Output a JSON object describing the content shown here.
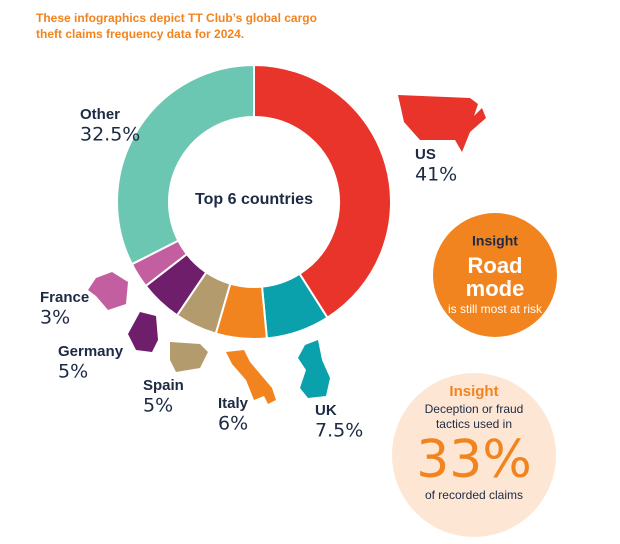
{
  "header": {
    "text": "These infographics depict TT Club’s global cargo theft claims frequency data for 2024."
  },
  "chart_data": {
    "type": "donut",
    "center_label": "Top 6 countries",
    "categories": [
      "US",
      "UK",
      "Italy",
      "Spain",
      "Germany",
      "France",
      "Other"
    ],
    "values": [
      41,
      7.5,
      6,
      5,
      5,
      3,
      32.5
    ],
    "value_labels": [
      "41%",
      "7.5%",
      "6%",
      "5%",
      "5%",
      "3%",
      "32.5%"
    ],
    "colors": [
      "#e8342a",
      "#0aa0ac",
      "#f28420",
      "#b39b6e",
      "#6e1e6a",
      "#c35fa0",
      "#6cc7b2"
    ]
  },
  "insights": [
    {
      "heading": "Insight",
      "headline": "Road mode",
      "text": "is still most at risk"
    },
    {
      "heading": "Insight",
      "text": "Deception or fraud tactics used in",
      "headline": "33%",
      "footer": "of recorded claims"
    }
  ]
}
